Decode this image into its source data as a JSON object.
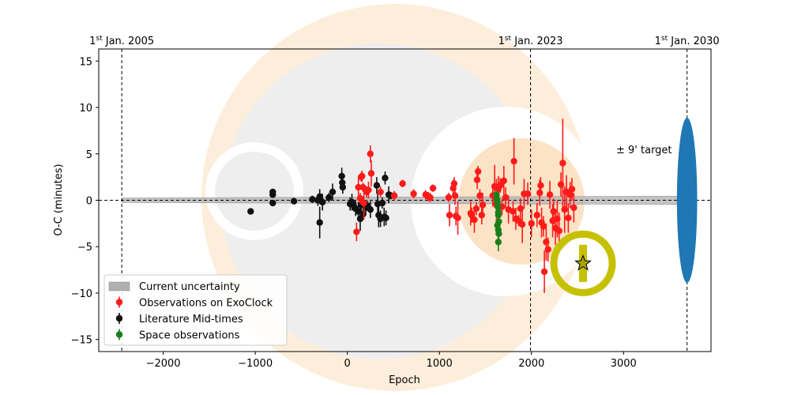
{
  "chart_data": {
    "type": "scatter",
    "title": "",
    "xlabel": "Epoch",
    "ylabel": "O-C (minutes)",
    "xlim": [
      -2700,
      3950
    ],
    "ylim": [
      -16.3,
      16.3
    ],
    "xticks": [
      -2000,
      -1000,
      0,
      1000,
      2000,
      3000
    ],
    "yticks": [
      -15,
      -10,
      -5,
      0,
      5,
      10,
      15
    ],
    "grid": false,
    "legend_position": "lower-left",
    "date_markers": [
      {
        "epoch": -2450,
        "label_sup": "st",
        "label_rest": " Jan. 2005",
        "label_prefix": "1"
      },
      {
        "epoch": 1990,
        "label_sup": "st",
        "label_rest": " Jan. 2023",
        "label_prefix": "1"
      },
      {
        "epoch": 3690,
        "label_sup": "st",
        "label_rest": " Jan. 2030",
        "label_prefix": "1"
      }
    ],
    "target_annotation": {
      "text": "± 9' target",
      "x": 2900,
      "y": 5.3
    },
    "target_ellipse": {
      "x": 3690,
      "y": 0,
      "half_width": 110,
      "half_height": 8.9,
      "color": "#1f77b4"
    },
    "highlight_point": {
      "x": 2560,
      "y": -6.8,
      "err": 2.0,
      "ring_color": "#c5c100",
      "marker": "star"
    },
    "uncertainty_band": {
      "x": [
        -2450,
        3690
      ],
      "half_width_start": 0.25,
      "half_width_end": 0.45,
      "color": "#b0b0b0"
    },
    "colors": {
      "observations": "#ff1a1a",
      "literature": "#111111",
      "space": "#1a7f1a",
      "uncertainty": "#b0b0b0"
    },
    "legend": [
      {
        "label": "Current uncertainty",
        "kind": "band"
      },
      {
        "label": "Observations on ExoClock",
        "kind": "point",
        "series": "observations"
      },
      {
        "label": "Literature Mid-times",
        "kind": "point",
        "series": "literature"
      },
      {
        "label": "Space observations",
        "kind": "point",
        "series": "space"
      }
    ],
    "series": [
      {
        "name": "Literature Mid-times",
        "key": "literature",
        "points": [
          [
            -1050,
            -1.2,
            0.3
          ],
          [
            -810,
            0.9,
            0.3
          ],
          [
            -810,
            0.6,
            0.3
          ],
          [
            -810,
            -0.3,
            0.3
          ],
          [
            -580,
            -0.1,
            0.3
          ],
          [
            -380,
            0.1,
            0.4
          ],
          [
            -320,
            0.0,
            0.6
          ],
          [
            -300,
            0.4,
            0.8
          ],
          [
            -300,
            -2.4,
            1.7
          ],
          [
            -270,
            -0.2,
            0.9
          ],
          [
            -200,
            0.3,
            0.5
          ],
          [
            -160,
            0.9,
            0.9
          ],
          [
            -60,
            2.6,
            0.9
          ],
          [
            -55,
            1.9,
            0.8
          ],
          [
            -50,
            1.4,
            0.7
          ],
          [
            30,
            -0.4,
            0.7
          ],
          [
            50,
            -0.2,
            0.9
          ],
          [
            70,
            -0.6,
            0.6
          ],
          [
            90,
            -0.9,
            0.8
          ],
          [
            120,
            -1.2,
            1.0
          ],
          [
            140,
            -2.0,
            1.3
          ],
          [
            150,
            -0.5,
            0.9
          ],
          [
            170,
            -1.5,
            0.6
          ],
          [
            200,
            -0.8,
            0.8
          ],
          [
            220,
            -0.6,
            0.5
          ],
          [
            250,
            -1.0,
            0.9
          ],
          [
            320,
            1.6,
            0.9
          ],
          [
            330,
            -0.4,
            1.1
          ],
          [
            340,
            -1.6,
            1.3
          ],
          [
            360,
            -2.0,
            0.9
          ],
          [
            380,
            -0.3,
            0.6
          ],
          [
            400,
            -1.8,
            1.0
          ],
          [
            420,
            -1.9,
            0.8
          ],
          [
            410,
            2.4,
            0.7
          ],
          [
            450,
            0.6,
            0.9
          ],
          [
            470,
            0.5,
            0.4
          ]
        ]
      },
      {
        "name": "Observations on ExoClock",
        "key": "observations",
        "points": [
          [
            100,
            -3.4,
            1.0
          ],
          [
            120,
            1.4,
            1.1
          ],
          [
            140,
            0.2,
            0.6
          ],
          [
            150,
            2.5,
            0.5
          ],
          [
            160,
            2.6,
            0.6
          ],
          [
            170,
            1.4,
            0.5
          ],
          [
            180,
            -0.3,
            1.8
          ],
          [
            210,
            0.9,
            0.6
          ],
          [
            230,
            1.1,
            0.9
          ],
          [
            250,
            5.0,
            0.9
          ],
          [
            260,
            2.9,
            1.4
          ],
          [
            360,
            0.9,
            0.6
          ],
          [
            510,
            0.5,
            0.5
          ],
          [
            600,
            1.8,
            0.4
          ],
          [
            720,
            0.7,
            0.5
          ],
          [
            850,
            0.6,
            0.5
          ],
          [
            880,
            0.4,
            0.5
          ],
          [
            900,
            0.3,
            0.5
          ],
          [
            930,
            1.3,
            0.4
          ],
          [
            1100,
            0.3,
            0.5
          ],
          [
            1110,
            -1.6,
            1.2
          ],
          [
            1150,
            1.3,
            0.9
          ],
          [
            1160,
            1.8,
            0.7
          ],
          [
            1170,
            0.5,
            1.0
          ],
          [
            1180,
            -1.7,
            1.0
          ],
          [
            1200,
            -1.9,
            1.8
          ],
          [
            1340,
            -1.4,
            1.3
          ],
          [
            1350,
            -1.6,
            0.8
          ],
          [
            1380,
            -2.1,
            1.4
          ],
          [
            1400,
            -0.9,
            0.7
          ],
          [
            1410,
            2.2,
            1.0
          ],
          [
            1420,
            3.1,
            0.6
          ],
          [
            1440,
            0.5,
            0.7
          ],
          [
            1460,
            -1.6,
            1.0
          ],
          [
            1470,
            -0.5,
            1.3
          ],
          [
            1580,
            0.5,
            1.2
          ],
          [
            1600,
            1.5,
            2.3
          ],
          [
            1620,
            -0.4,
            2.7
          ],
          [
            1640,
            1.2,
            1.4
          ],
          [
            1660,
            1.6,
            0.8
          ],
          [
            1680,
            -0.7,
            0.9
          ],
          [
            1700,
            2.1,
            1.6
          ],
          [
            1720,
            0.3,
            1.1
          ],
          [
            1750,
            -1.0,
            1.5
          ],
          [
            1800,
            -1.2,
            1.1
          ],
          [
            1810,
            4.2,
            2.5
          ],
          [
            1830,
            -2.0,
            1.2
          ],
          [
            1860,
            -2.2,
            0.6
          ],
          [
            1880,
            -0.9,
            1.1
          ],
          [
            1900,
            -2.6,
            2.0
          ],
          [
            1920,
            0.7,
            1.6
          ],
          [
            1960,
            0.7,
            1.2
          ],
          [
            2000,
            -2.5,
            1.5
          ],
          [
            2060,
            -1.6,
            1.3
          ],
          [
            2090,
            0.8,
            1.4
          ],
          [
            2100,
            1.6,
            0.9
          ],
          [
            2110,
            -2.4,
            1.6
          ],
          [
            2130,
            -2.8,
            1.1
          ],
          [
            2140,
            -7.7,
            2.3
          ],
          [
            2160,
            -4.5,
            2.0
          ],
          [
            2180,
            -5.3,
            1.3
          ],
          [
            2200,
            0.6,
            1.5
          ],
          [
            2230,
            -2.2,
            1.8
          ],
          [
            2240,
            -1.2,
            1.4
          ],
          [
            2260,
            -3.0,
            1.8
          ],
          [
            2280,
            -2.0,
            2.0
          ],
          [
            2300,
            -3.3,
            2.0
          ],
          [
            2320,
            1.7,
            1.3
          ],
          [
            2340,
            4.0,
            4.8
          ],
          [
            2360,
            -1.0,
            2.5
          ],
          [
            2380,
            0.9,
            1.8
          ],
          [
            2400,
            -1.9,
            1.6
          ],
          [
            2420,
            0.6,
            1.4
          ],
          [
            2440,
            1.2,
            1.2
          ],
          [
            2460,
            -0.8,
            1.6
          ]
        ]
      },
      {
        "name": "Space observations",
        "key": "space",
        "points": [
          [
            1620,
            0.6,
            0.3
          ],
          [
            1625,
            0.1,
            0.3
          ],
          [
            1630,
            -0.2,
            0.4
          ],
          [
            1635,
            -0.7,
            0.4
          ],
          [
            1640,
            -1.3,
            0.4
          ],
          [
            1640,
            -1.6,
            0.3
          ],
          [
            1645,
            -2.3,
            0.5
          ],
          [
            1630,
            -2.7,
            0.4
          ],
          [
            1640,
            -3.2,
            0.5
          ],
          [
            1645,
            -3.6,
            0.6
          ],
          [
            1640,
            -4.5,
            1.0
          ]
        ]
      }
    ]
  }
}
